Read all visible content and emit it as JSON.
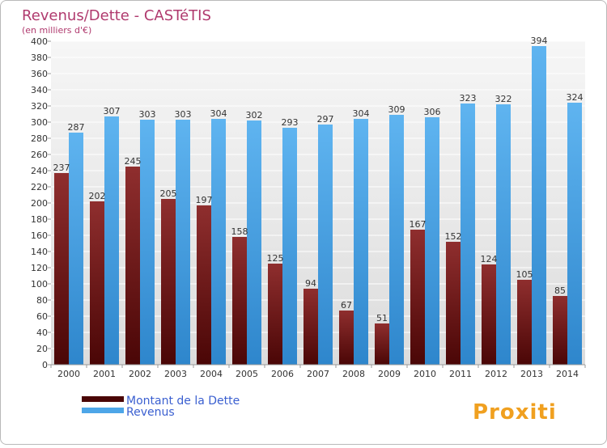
{
  "chart_data": {
    "type": "bar",
    "title": "Revenus/Dette - CASTéTIS",
    "subtitle": "(en milliers d'€)",
    "categories": [
      "2000",
      "2001",
      "2002",
      "2003",
      "2004",
      "2005",
      "2006",
      "2007",
      "2008",
      "2009",
      "2010",
      "2011",
      "2012",
      "2013",
      "2014"
    ],
    "series": [
      {
        "name": "Montant de la Dette",
        "color": "#7a1f1f",
        "values": [
          237,
          202,
          245,
          205,
          197,
          158,
          125,
          94,
          67,
          51,
          167,
          152,
          124,
          105,
          85
        ]
      },
      {
        "name": "Revenus",
        "color": "#4da6e8",
        "values": [
          287,
          307,
          303,
          303,
          304,
          302,
          293,
          297,
          304,
          309,
          306,
          323,
          322,
          394,
          324
        ]
      }
    ],
    "ylim": [
      0,
      400
    ],
    "ytick_step": 20,
    "grid": true,
    "legend": "bottom-left"
  },
  "logo": {
    "text": "Proxiti"
  },
  "colors": {
    "title": "#b03a6e",
    "legend_text": "#3a5fd0",
    "grid": "#ffffff",
    "plot_bg": "#ebebeb"
  }
}
